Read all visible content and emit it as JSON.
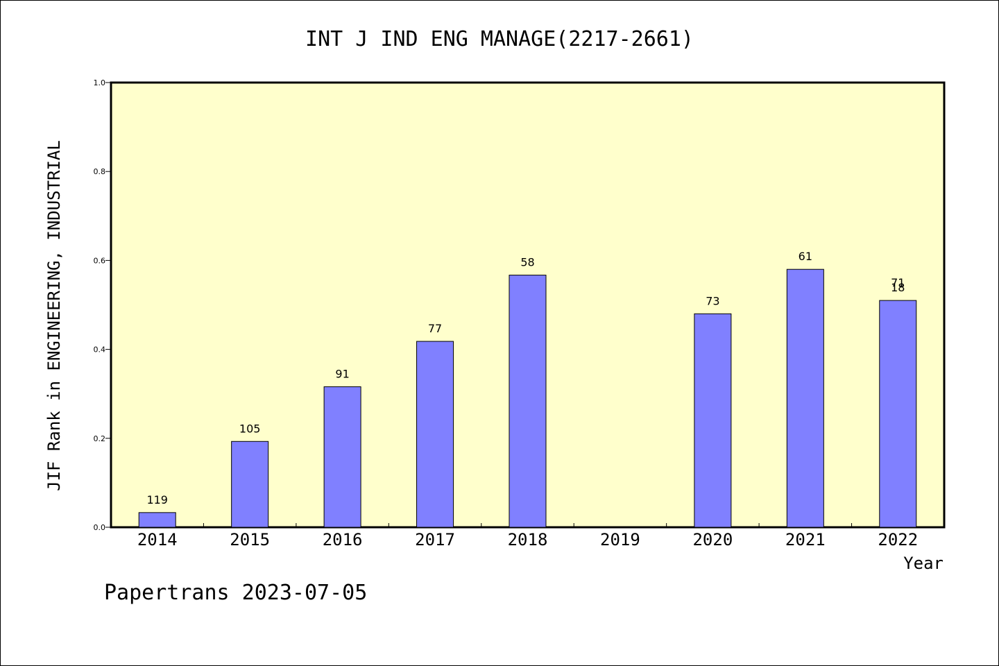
{
  "chart_data": {
    "type": "bar",
    "title": "INT J IND ENG MANAGE(2217-2661)",
    "ylabel": "JIF Rank in ENGINEERING, INDUSTRIAL",
    "xlabel": "Year",
    "categories": [
      "2014",
      "2015",
      "2016",
      "2017",
      "2018",
      "2019",
      "2020",
      "2021",
      "2022"
    ],
    "values": [
      0.033,
      0.193,
      0.316,
      0.418,
      0.567,
      null,
      0.48,
      0.58,
      0.51
    ],
    "bar_labels": [
      "119",
      "105",
      "91",
      "77",
      "58",
      "",
      "73",
      "61",
      "18"
    ],
    "extra_labels": [
      "",
      "",
      "",
      "",
      "",
      "",
      "",
      "",
      "71"
    ],
    "yticks": [
      "0.0",
      "0.2",
      "0.4",
      "0.6",
      "0.8",
      "1.0"
    ],
    "ylim": [
      0,
      1.0
    ],
    "grid": false,
    "colors": {
      "plot_bg": "#ffffcc",
      "bar": "#8080ff",
      "axis": "#000000"
    }
  },
  "footer": {
    "text": "Papertrans 2023-07-05"
  }
}
